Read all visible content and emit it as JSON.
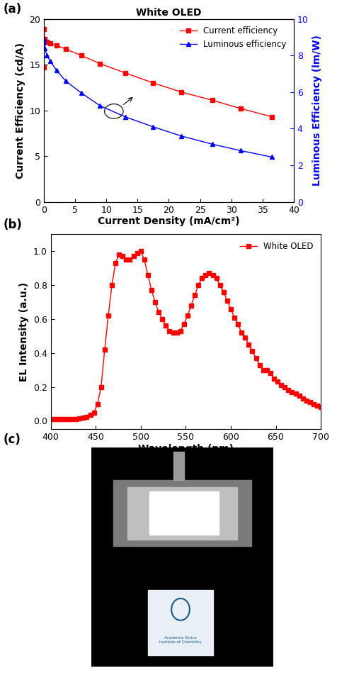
{
  "chart_data": [
    {
      "type": "line",
      "panel": "(a)",
      "title": "White OLED",
      "x_label": "Current Density (mA/cm²)",
      "y_label": "Current Efficiency (cd/A)",
      "y2_label": "Luminous Efficiency (lm/W)",
      "xlim": [
        0,
        40
      ],
      "xticks": [
        0,
        5,
        10,
        15,
        20,
        25,
        30,
        35,
        40
      ],
      "ylim": [
        0,
        20
      ],
      "yticks": [
        0,
        5,
        10,
        15,
        20
      ],
      "y2lim": [
        0,
        10
      ],
      "y2ticks": [
        0,
        2,
        4,
        6,
        8,
        10
      ],
      "legend": "upper right",
      "x": [
        0.02,
        0.05,
        0.1,
        0.5,
        1,
        2,
        3.5,
        6,
        9,
        13,
        17.5,
        22,
        27,
        31.5,
        36.5
      ],
      "series": [
        {
          "name": "Current efficiency",
          "color": "#ff0000",
          "marker": "square",
          "line_style": "solid",
          "values": [
            14.7,
            18.9,
            17.8,
            17.5,
            17.3,
            17.1,
            16.7,
            16.0,
            15.1,
            14.1,
            13.0,
            12.0,
            11.1,
            10.2,
            9.3
          ]
        },
        {
          "name": "Luminous efficiency",
          "color": "#0000ff",
          "marker": "triangle",
          "line_style": "solid",
          "axis": "y2",
          "values": [
            8.9,
            8.7,
            8.4,
            8.0,
            7.7,
            7.2,
            6.6,
            5.95,
            5.25,
            4.65,
            4.1,
            3.6,
            3.15,
            2.8,
            2.45
          ]
        }
      ]
    },
    {
      "type": "line",
      "panel": "(b)",
      "x_label": "Wavelength (nm)",
      "y_label": "EL Intensity (a.u.)",
      "xlim": [
        400,
        700
      ],
      "xticks": [
        400,
        450,
        500,
        550,
        600,
        650,
        700
      ],
      "ylim": [
        -0.05,
        1.1
      ],
      "yticks": [
        {
          "value": 0.0,
          "label": "0.0"
        },
        0.2,
        0.4,
        0.6,
        0.8,
        {
          "value": 1.0,
          "label": "1.0"
        }
      ],
      "legend": "upper right",
      "x": [
        400,
        404,
        408,
        412,
        416,
        420,
        424,
        428,
        432,
        436,
        440,
        444,
        448,
        452,
        456,
        460,
        464,
        468,
        472,
        476,
        480,
        484,
        488,
        492,
        496,
        500,
        504,
        508,
        512,
        516,
        520,
        524,
        528,
        532,
        536,
        540,
        544,
        548,
        552,
        556,
        560,
        564,
        568,
        572,
        576,
        580,
        584,
        588,
        592,
        596,
        600,
        604,
        608,
        612,
        616,
        620,
        624,
        628,
        632,
        636,
        640,
        644,
        648,
        652,
        656,
        660,
        664,
        668,
        672,
        676,
        680,
        684,
        688,
        692,
        696,
        700
      ],
      "series": [
        {
          "name": "White OLED",
          "color": "#ff0000",
          "marker": "square",
          "line_style": "solid",
          "values": [
            0.01,
            0.01,
            0.01,
            0.01,
            0.01,
            0.01,
            0.01,
            0.01,
            0.015,
            0.02,
            0.025,
            0.035,
            0.05,
            0.1,
            0.2,
            0.42,
            0.62,
            0.8,
            0.93,
            0.98,
            0.97,
            0.95,
            0.95,
            0.97,
            0.99,
            1.0,
            0.95,
            0.86,
            0.77,
            0.7,
            0.64,
            0.6,
            0.56,
            0.53,
            0.52,
            0.52,
            0.53,
            0.57,
            0.62,
            0.68,
            0.74,
            0.8,
            0.84,
            0.86,
            0.87,
            0.86,
            0.84,
            0.8,
            0.76,
            0.71,
            0.66,
            0.61,
            0.57,
            0.52,
            0.49,
            0.45,
            0.41,
            0.37,
            0.33,
            0.3,
            0.3,
            0.28,
            0.25,
            0.23,
            0.21,
            0.2,
            0.18,
            0.17,
            0.16,
            0.15,
            0.13,
            0.12,
            0.11,
            0.1,
            0.09,
            0.08
          ]
        }
      ]
    }
  ],
  "photo": {
    "panel": "(c)",
    "card_text": "Academia Sinica\nInstitute of Chemistry"
  }
}
